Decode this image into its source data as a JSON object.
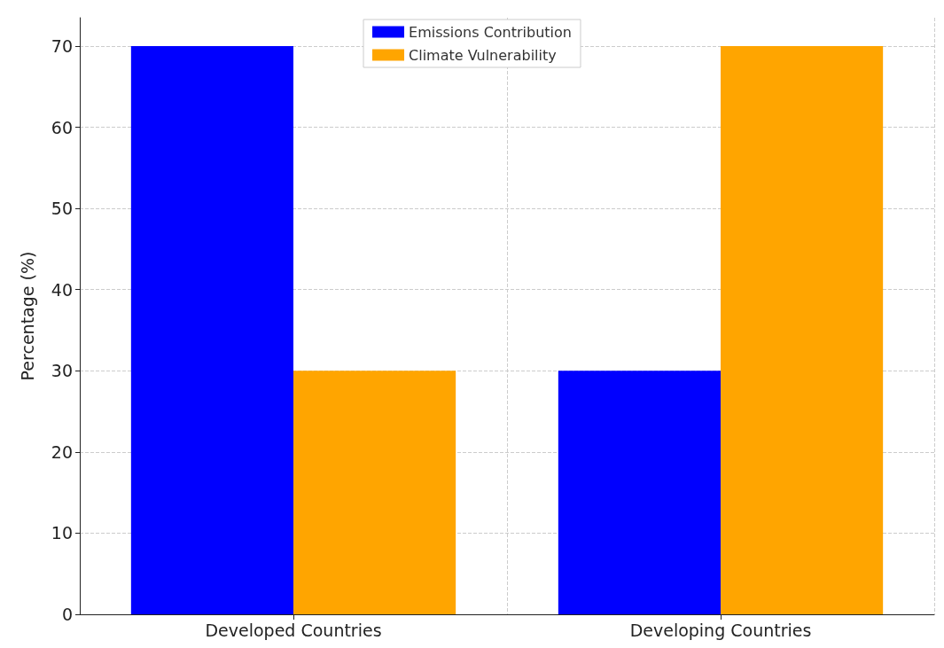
{
  "chart_data": {
    "type": "bar",
    "ylabel": "Percentage (%)",
    "categories": [
      "Developed Countries",
      "Developing Countries"
    ],
    "series": [
      {
        "name": "Emissions Contribution",
        "color": "#0000ff",
        "values": [
          70,
          30
        ]
      },
      {
        "name": "Climate Vulnerability",
        "color": "#ffa500",
        "values": [
          30,
          70
        ]
      }
    ],
    "ylim": [
      0,
      73.5
    ],
    "yticks": [
      0,
      10,
      20,
      30,
      40,
      50,
      60,
      70
    ],
    "grid": true,
    "legend": "top"
  }
}
